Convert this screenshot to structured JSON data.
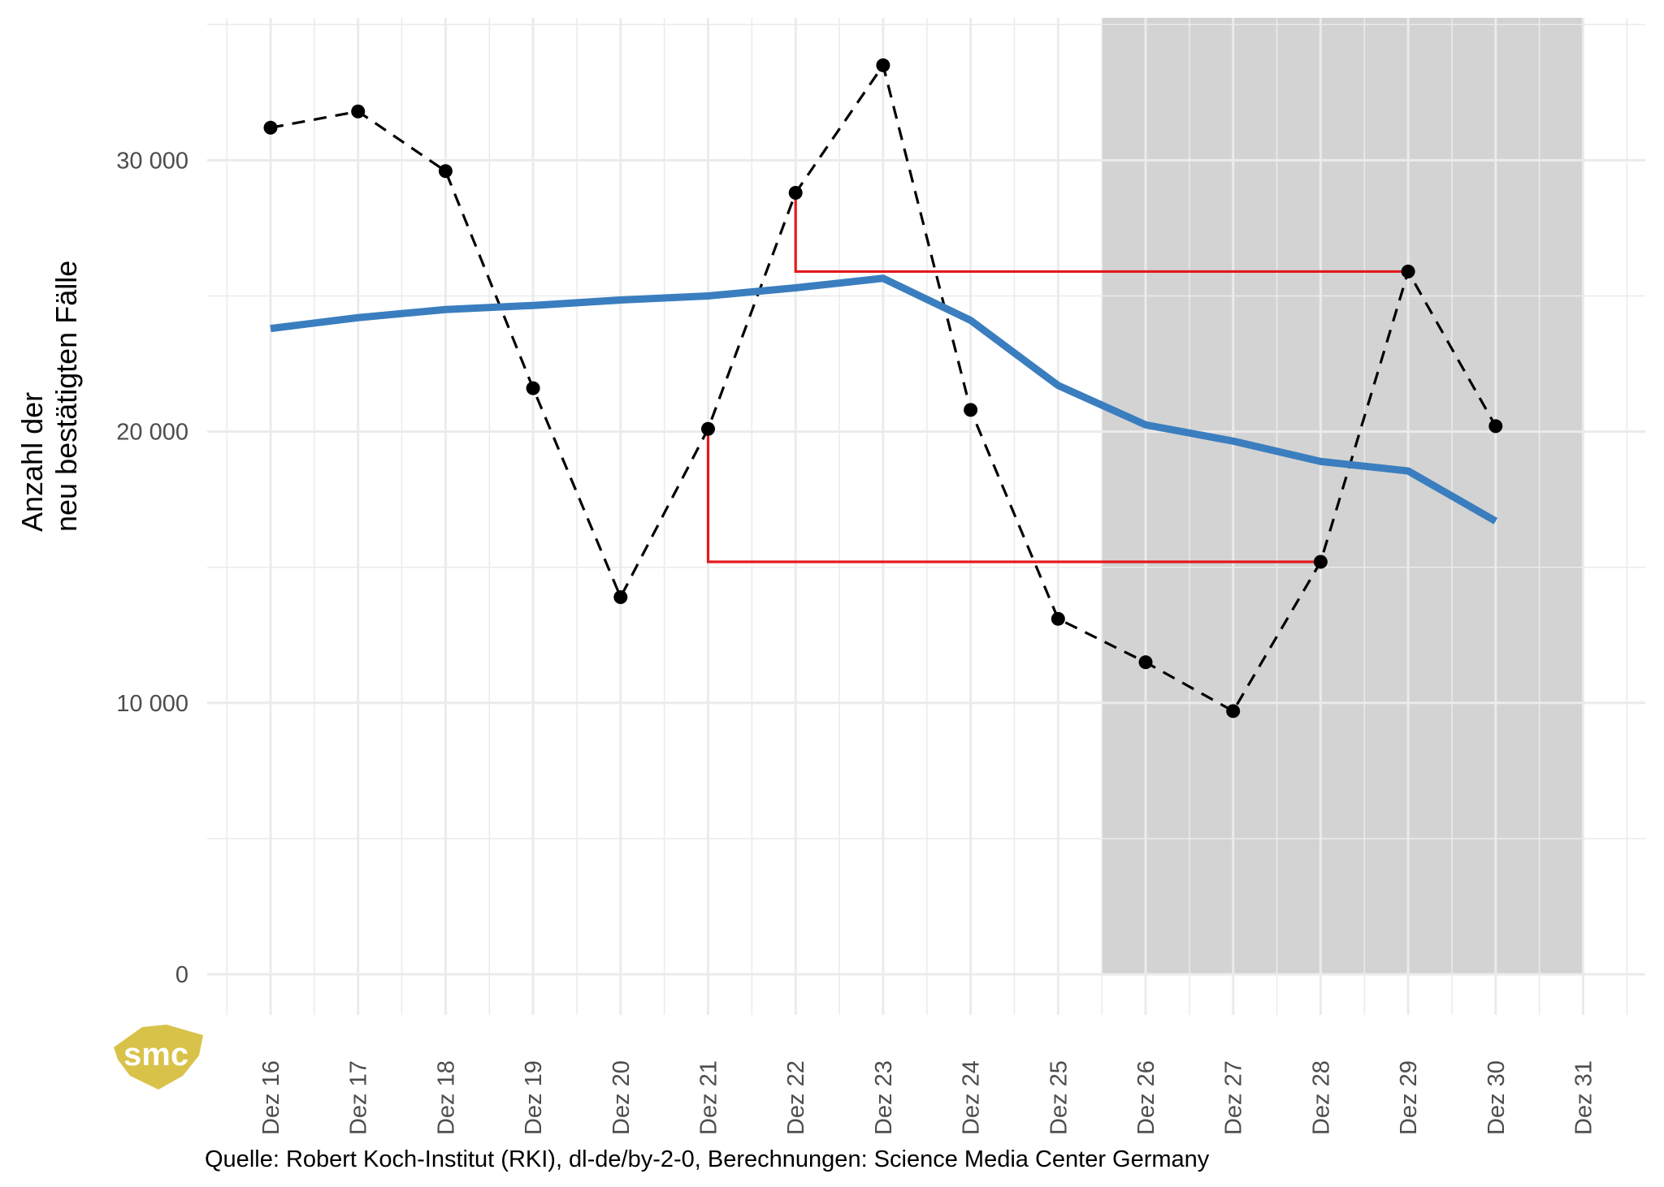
{
  "chart_data": {
    "type": "line",
    "ylabel": [
      "Anzahl der",
      "neu bestätigten Fälle"
    ],
    "xlabel": "",
    "ylim": [
      0,
      35000
    ],
    "y_ticks": [
      0,
      10000,
      20000,
      30000
    ],
    "y_tick_labels": [
      "0",
      "10 000",
      "20 000",
      "30 000"
    ],
    "x_tick_labels": [
      "Dez 16",
      "Dez 17",
      "Dez 18",
      "Dez 19",
      "Dez 20",
      "Dez 21",
      "Dez 22",
      "Dez 23",
      "Dez 24",
      "Dez 25",
      "Dez 26",
      "Dez 27",
      "Dez 28",
      "Dez 29",
      "Dez 30",
      "Dez 31"
    ],
    "x_days": [
      16,
      17,
      18,
      19,
      20,
      21,
      22,
      23,
      24,
      25,
      26,
      27,
      28,
      29,
      30,
      31
    ],
    "shaded_region": {
      "from_day": 25.5,
      "to_day": 31,
      "color": "#d3d3d3"
    },
    "series": [
      {
        "style": "dashed-points",
        "color": "#000000",
        "days": [
          16,
          17,
          18,
          19,
          20,
          21,
          22,
          23,
          24,
          25,
          26,
          27,
          28,
          29,
          30
        ],
        "values": [
          31200,
          31800,
          29600,
          21600,
          13900,
          20100,
          28800,
          33500,
          20800,
          13100,
          11500,
          9700,
          15200,
          25900,
          20200
        ]
      },
      {
        "style": "solid",
        "color": "#3a7ebf",
        "days": [
          16,
          17,
          18,
          19,
          20,
          21,
          22,
          23,
          24,
          25,
          26,
          27,
          28,
          29,
          30
        ],
        "values": [
          23800,
          24200,
          24500,
          24650,
          24850,
          25000,
          25300,
          25650,
          24100,
          21700,
          20250,
          19650,
          18900,
          18550,
          16700
        ]
      }
    ],
    "annotations": [
      {
        "color": "#e31a1c",
        "from_day": 22,
        "from_value": 28800,
        "to_day": 29,
        "to_value": 25900
      },
      {
        "color": "#e31a1c",
        "from_day": 21,
        "from_value": 20100,
        "to_day": 28,
        "to_value": 15200
      }
    ],
    "caption": "Quelle: Robert Koch-Institut (RKI), dl-de/by-2-0, Berechnungen: Science Media Center Germany"
  },
  "logo": {
    "text": "smc",
    "color": "#d9c24a"
  }
}
